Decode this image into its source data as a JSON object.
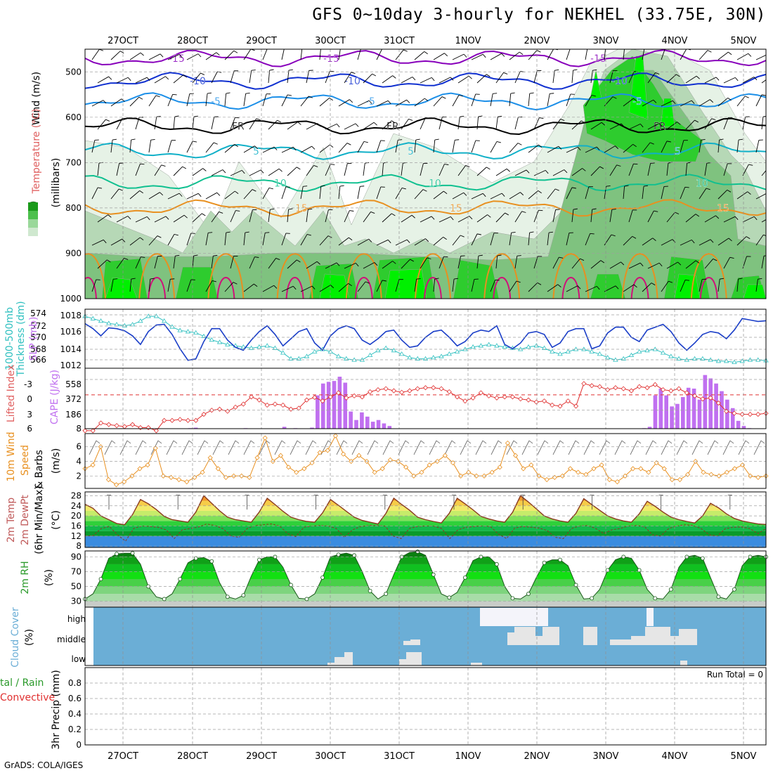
{
  "title": "GFS 0~10day 3-hourly for NEKHEL (33.75E, 30N)",
  "credit": "GrADS: COLA/IGES",
  "colors": {
    "rh_light": "#e6f2e6",
    "rh_mid": "#b6d8b6",
    "rh_dark": "#7fc27f",
    "rh_green": "#2ecc2e",
    "rh_bright": "#00f000",
    "temp_purple": "#8800bb",
    "temp_blue": "#1030d0",
    "temp_lightblue": "#1c8fe8",
    "temp_cyan": "#10b0c8",
    "temp_teal": "#10c090",
    "temp_orange": "#e89020",
    "temp_magenta": "#d0107a",
    "slp": "#1a3ec8",
    "thickness": "#30c0c0",
    "lifted": "#e03030",
    "cape": "#c070f0",
    "wind": "#e89020",
    "cloud_bg": "#6baed6",
    "cloud_fill": "#e6e6e6",
    "high_cloud": "#f4f4fa"
  },
  "chart_data": [
    {
      "type": "heatmap",
      "name": "Pressure-level RH, Temperature and Wind",
      "x_dates": [
        "27OCT",
        "28OCT",
        "29OCT",
        "30OCT",
        "31OCT",
        "1NOV",
        "2NOV",
        "3NOV",
        "4NOV",
        "5NOV"
      ],
      "ylabel": "(millibars)",
      "y_ticks": [
        500,
        600,
        700,
        800,
        900,
        1000
      ],
      "ylim": [
        1000,
        450
      ],
      "legend_labels": {
        "wind": "Wind (m/s)",
        "temperature": "Temperature (°C)",
        "rh": "RH (%)"
      },
      "isotherms": [
        {
          "label": "-15",
          "pressure": 470,
          "color": "temp_purple"
        },
        {
          "label": "-10",
          "pressure": 520,
          "color": "temp_blue"
        },
        {
          "label": "-5",
          "pressure": 565,
          "color": "temp_lightblue"
        },
        {
          "label": "FR",
          "pressure": 620,
          "color": "#000000"
        },
        {
          "label": "5",
          "pressure": 675,
          "color": "temp_cyan"
        },
        {
          "label": "10",
          "pressure": 745,
          "color": "temp_teal"
        },
        {
          "label": "15",
          "pressure": 800,
          "color": "temp_orange"
        }
      ],
      "rh_labels": [
        "30",
        "50",
        "50",
        "50",
        "30",
        "50",
        "10",
        "50"
      ]
    },
    {
      "type": "line",
      "name": "SLP and 1000-500mb thickness",
      "ylabel_left": "1000-500mb Thickness (dm)",
      "ylabel_right": "SLP (mb)",
      "left_ticks": [
        566,
        568,
        570,
        572,
        574
      ],
      "right_ticks": [
        1012,
        1014,
        1016,
        1018
      ],
      "series": [
        {
          "name": "SLP",
          "axis": "right",
          "color": "slp",
          "values": [
            1017.5,
            1016.8,
            1015.8,
            1016.9,
            1016.8,
            1016.5,
            1015.8,
            1014.6,
            1016.4,
            1017.3,
            1017.4,
            1016.0,
            1014.0,
            1012.4,
            1012.6,
            1015.0,
            1016.8,
            1016.8,
            1015.2,
            1014.2,
            1013.8,
            1015.2,
            1016.4,
            1017.2,
            1016.0,
            1014.4,
            1015.4,
            1016.4,
            1016.8,
            1014.8,
            1013.8,
            1015.8,
            1016.8,
            1017.2,
            1016.8,
            1015.2,
            1014.6,
            1015.4,
            1016.4,
            1016.6,
            1015.2,
            1014.2,
            1014.4,
            1015.6,
            1016.4,
            1016.6,
            1015.6,
            1014.4,
            1015.0,
            1016.2,
            1016.6,
            1016.4,
            1017.2,
            1014.6,
            1014.0,
            1014.8,
            1016.2,
            1016.4,
            1016.0,
            1014.2,
            1014.8,
            1016.4,
            1016.8,
            1016.8,
            1014.0,
            1014.4,
            1016.2,
            1017.0,
            1017.0,
            1015.6,
            1015.0,
            1016.6,
            1017.0,
            1017.4,
            1016.4,
            1014.8,
            1013.8,
            1014.8,
            1016.0,
            1016.4,
            1016.2,
            1015.4,
            1016.6,
            1018.2,
            1018.0,
            1017.8,
            1017.9
          ]
        },
        {
          "name": "Thickness",
          "axis": "left",
          "color": "thickness",
          "values": [
            573.8,
            573.4,
            573.0,
            572.6,
            572.4,
            572.2,
            572.4,
            573.0,
            573.8,
            573.8,
            573.0,
            572.0,
            571.4,
            571.2,
            571.0,
            570.4,
            569.8,
            569.4,
            569.0,
            568.8,
            568.6,
            568.4,
            568.6,
            568.8,
            568.4,
            567.6,
            566.6,
            566.6,
            567.0,
            567.8,
            568.2,
            567.8,
            567.0,
            566.6,
            566.4,
            566.4,
            567.2,
            568.0,
            568.4,
            568.0,
            567.4,
            566.8,
            566.6,
            566.6,
            566.8,
            567.0,
            567.4,
            567.8,
            568.2,
            568.6,
            568.8,
            569.0,
            568.8,
            568.6,
            568.4,
            568.2,
            568.6,
            568.8,
            568.4,
            567.8,
            567.4,
            567.8,
            568.2,
            568.2,
            567.8,
            567.4,
            566.8,
            566.4,
            566.6,
            567.2,
            567.8,
            568.0,
            568.2,
            567.6,
            567.0,
            566.6,
            566.4,
            566.6,
            566.6,
            566.4,
            566.2,
            566.2,
            566.0,
            566.2,
            566.4,
            566.4,
            566.3
          ]
        }
      ]
    },
    {
      "type": "bar",
      "name": "Lifted Index and CAPE",
      "ylabel_left": "Lifted Index",
      "ylabel_right": "CAPE (J/kg)",
      "left_ticks": [
        -3,
        0,
        3,
        6
      ],
      "right_ticks": [
        8,
        186,
        372,
        558
      ],
      "series": [
        {
          "name": "Lifted Index",
          "axis": "left",
          "color": "lifted",
          "values": [
            7,
            7,
            5.5,
            5.8,
            6,
            6.2,
            5.8,
            6.4,
            6.4,
            7,
            5,
            5,
            4.8,
            5,
            5,
            3.8,
            3.0,
            2.8,
            3.2,
            2.4,
            1.8,
            0.4,
            1.0,
            2.0,
            1.8,
            2.0,
            2.8,
            2.6,
            1.0,
            0.5,
            1.2,
            0.4,
            -0.4,
            0.6,
            0.2,
            0.4,
            -0.6,
            -1.0,
            -1.2,
            -0.8,
            -0.5,
            -0.8,
            -1.2,
            -1.4,
            -1.4,
            -1.2,
            -0.6,
            0.4,
            1.2,
            0.6,
            -0.4,
            0.2,
            0.6,
            0.4,
            0.4,
            0.8,
            1.0,
            1.4,
            1.2,
            2.0,
            2.2,
            1.2,
            2.2,
            -2.2,
            -1.8,
            -1.6,
            -1.0,
            -1.4,
            -1.2,
            -0.8,
            -1.6,
            -1.4,
            -2.0,
            -1.0,
            -0.8,
            -1.2,
            -0.4,
            0.2,
            0.8,
            0.6,
            1.6,
            3.2,
            3.6,
            3.8,
            3.8,
            3.8,
            3.6
          ]
        },
        {
          "name": "CAPE",
          "axis": "right",
          "color": "cape",
          "values": [
            8,
            8,
            8,
            8,
            8,
            8,
            8,
            8,
            8,
            8,
            8,
            8,
            8,
            8,
            8,
            8,
            8,
            8,
            8,
            14,
            20,
            8,
            8,
            8,
            8,
            8,
            8,
            8,
            8,
            14,
            8,
            8,
            8,
            8,
            8,
            8,
            30,
            8,
            14,
            8,
            8,
            20,
            400,
            540,
            560,
            570,
            620,
            550,
            210,
            110,
            200,
            150,
            90,
            110,
            70,
            40,
            8,
            8,
            8,
            8,
            8,
            8,
            8,
            8,
            8,
            8,
            8,
            8,
            8,
            8,
            8,
            8,
            8,
            8,
            8,
            8,
            8,
            8,
            8,
            8,
            8,
            8,
            8,
            8,
            8,
            8,
            8,
            8,
            8,
            8,
            8,
            8,
            8,
            8,
            8,
            8,
            8,
            8,
            8,
            8,
            8,
            14,
            30,
            400,
            480,
            400,
            270,
            300,
            380,
            490,
            480,
            350,
            640,
            600,
            540,
            450,
            350,
            250,
            100,
            40,
            14,
            8,
            8,
            8
          ]
        },
        {
          "name": "Zero line",
          "axis": "left",
          "color": "lifted",
          "values": [
            0
          ]
        }
      ]
    },
    {
      "type": "line",
      "name": "10m Wind Speed & Barbs",
      "ylabel": "10m Wind Speed & Barbs (m/s)",
      "y_ticks": [
        2,
        4,
        6
      ],
      "series": [
        {
          "name": "Wind speed",
          "color": "wind",
          "values": [
            3.0,
            3.5,
            6.0,
            1.5,
            0.8,
            1.2,
            2.0,
            3.0,
            3.5,
            5.8,
            2.0,
            1.8,
            1.5,
            1.2,
            1.8,
            2.5,
            4.5,
            3.0,
            1.8,
            2.0,
            2.0,
            1.8,
            4.5,
            7.2,
            4.0,
            4.8,
            3.2,
            2.5,
            3.0,
            3.8,
            5.2,
            5.5,
            7.5,
            5.0,
            4.0,
            4.8,
            4.0,
            2.5,
            3.0,
            4.2,
            4.0,
            3.2,
            2.0,
            2.5,
            3.5,
            4.0,
            4.8,
            3.8,
            2.0,
            2.5,
            2.0,
            2.0,
            2.5,
            3.2,
            6.5,
            4.8,
            3.0,
            3.5,
            2.0,
            1.5,
            1.8,
            2.0,
            3.0,
            2.5,
            2.2,
            3.0,
            3.5,
            1.5,
            1.2,
            2.0,
            3.0,
            3.0,
            2.5,
            3.8,
            3.0,
            1.5,
            1.5,
            2.2,
            4.0,
            2.5,
            2.2,
            2.0,
            2.5,
            3.0,
            3.5,
            2.0,
            1.8,
            2.0
          ]
        }
      ]
    },
    {
      "type": "area",
      "name": "2m Temp, 2m DewPt, 6hr Min/Max",
      "ylabel": "2m Temp 2m DewPt (6hr Min/Max) (°C)",
      "y_ticks": [
        8,
        12,
        16,
        20,
        24,
        28
      ],
      "series": [
        {
          "name": "2m Temp",
          "values": [
            24.6,
            23.0,
            20.0,
            18.5,
            17.0,
            16.5,
            20.5,
            26.5,
            24.8,
            22.5,
            19.8,
            18.5,
            18.0,
            17.5,
            21.5,
            28.0,
            25.0,
            22.0,
            19.5,
            18.5,
            18.0,
            17.5,
            21.5,
            27.0,
            24.5,
            21.8,
            19.5,
            18.5,
            17.8,
            17.5,
            21.2,
            26.5,
            24.2,
            21.8,
            19.5,
            18.2,
            17.5,
            16.8,
            21.0,
            27.0,
            24.5,
            22.2,
            19.5,
            18.5,
            17.8,
            17.2,
            21.0,
            27.0,
            24.8,
            22.4,
            19.8,
            18.8,
            18.0,
            17.5,
            21.4,
            28.0,
            25.5,
            22.8,
            20.0,
            18.8,
            18.0,
            17.5,
            21.0,
            26.8,
            24.5,
            22.2,
            20.0,
            18.8,
            18.0,
            17.5,
            20.8,
            25.8,
            23.8,
            21.5,
            19.5,
            18.5,
            17.8,
            17.2,
            20.0,
            25.0,
            23.2,
            20.8,
            19.0,
            18.0,
            17.4,
            16.8,
            16.6
          ]
        },
        {
          "name": "2m DewPt",
          "values": [
            12.0,
            12.2,
            15.0,
            15.8,
            12.5,
            10.0,
            15.0,
            16.0,
            15.8,
            15.5,
            14.5,
            11.0,
            14.5,
            15.0,
            15.6,
            16.8,
            16.2,
            15.0,
            12.0,
            11.5,
            15.0,
            16.2,
            16.5,
            16.8,
            16.0,
            13.0,
            11.8,
            15.5,
            16.0,
            16.2,
            16.0,
            15.0,
            11.5,
            14.5,
            15.8,
            16.2,
            16.2,
            16.0,
            12.0,
            11.0,
            15.0,
            15.8,
            16.0,
            16.0,
            15.0,
            11.0,
            14.5,
            15.5,
            15.8,
            16.0,
            15.8,
            12.8,
            11.0,
            15.2,
            15.8,
            15.5,
            15.2,
            14.2,
            11.5,
            11.0,
            15.0,
            16.0,
            16.2,
            15.0,
            13.0,
            14.5,
            15.0,
            16.0,
            16.2,
            15.8,
            12.5,
            12.0,
            15.0,
            16.0,
            16.5,
            16.2,
            15.0,
            12.5,
            12.0,
            15.0,
            15.5,
            15.6,
            15.0,
            13.0,
            15.0
          ]
        }
      ]
    },
    {
      "type": "area",
      "name": "2m RH",
      "ylabel": "2m RH (%)",
      "y_ticks": [
        30,
        50,
        70,
        90
      ],
      "series": [
        {
          "name": "2m RH",
          "values": [
            33,
            40,
            60,
            88,
            94,
            95,
            95,
            80,
            50,
            36,
            33,
            40,
            60,
            82,
            88,
            89,
            84,
            55,
            36,
            33,
            38,
            64,
            86,
            90,
            90,
            76,
            52,
            34,
            33,
            40,
            62,
            90,
            93,
            95,
            92,
            70,
            44,
            33,
            40,
            66,
            90,
            96,
            97,
            92,
            66,
            40,
            35,
            42,
            62,
            85,
            90,
            90,
            80,
            50,
            34,
            33,
            40,
            62,
            82,
            86,
            86,
            78,
            52,
            33,
            34,
            46,
            72,
            86,
            90,
            88,
            72,
            46,
            34,
            33,
            46,
            76,
            90,
            92,
            88,
            62,
            36,
            33,
            46,
            78,
            90,
            92,
            90
          ]
        }
      ]
    },
    {
      "type": "heatmap",
      "name": "Cloud Cover",
      "ylabel": "Cloud Cover (%)",
      "levels": [
        "high",
        "middle",
        "low"
      ]
    },
    {
      "type": "bar",
      "name": "3hr Precip",
      "ylabel": "3hr Precip (mm)",
      "legend": [
        "Total / Rain",
        "Convective"
      ],
      "run_total": "Run Total = 0",
      "y_ticks": [
        "0",
        "0.2",
        "0.4",
        "0.6",
        "0.8"
      ],
      "ylim": [
        0,
        1
      ],
      "values": []
    }
  ],
  "labels": {
    "p1_wind": "Wind (m/s)",
    "p1_temp": "Temperature (°C)",
    "p1_rh": "RH (%)",
    "p1_mb": "(millibars)",
    "p2_thick_a": "1000-500mb",
    "p2_thick_b": "Thickness (dm)",
    "p2_slp": "SLP (mb)",
    "p3_li": "Lifted Index",
    "p3_cape": "CAPE (J/kg)",
    "p4_a": "10m Wind",
    "p4_b": "Speed",
    "p4_c": "& Barbs",
    "p4_d": "(m/s)",
    "p5_a": "2m Temp",
    "p5_b": "2m DewPt",
    "p5_c": "(6hr Min/Max)",
    "p5_d": "(°C)",
    "p6_a": "2m RH",
    "p6_b": "(%)",
    "p7_a": "Cloud Cover",
    "p7_b": "(%)",
    "p8_a": "tal / Rain",
    "p8_b": "Convective",
    "p8_c": "3hr Precip (mm)"
  }
}
